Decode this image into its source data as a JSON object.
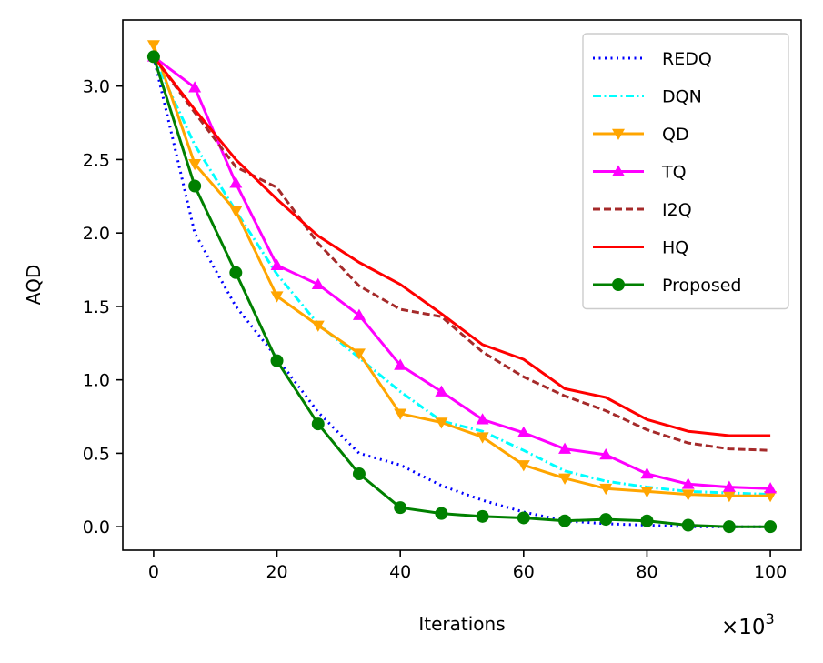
{
  "chart_data": {
    "type": "line",
    "xlabel": "Iterations",
    "ylabel": "AQD",
    "x_multiplier": "×10",
    "x_multiplier_exp": "3",
    "xlim": [
      -5,
      105
    ],
    "ylim": [
      -0.16,
      3.45
    ],
    "xticks": [
      0,
      20,
      40,
      60,
      80,
      100
    ],
    "xtick_labels": [
      "0",
      "20",
      "40",
      "60",
      "80",
      "100"
    ],
    "yticks": [
      0.0,
      0.5,
      1.0,
      1.5,
      2.0,
      2.5,
      3.0
    ],
    "ytick_labels": [
      "0.0",
      "0.5",
      "1.0",
      "1.5",
      "2.0",
      "2.5",
      "3.0"
    ],
    "grid": false,
    "legend_position": "top-right",
    "x": [
      0,
      6.67,
      13.33,
      20,
      26.67,
      33.33,
      40,
      46.67,
      53.33,
      60,
      66.67,
      73.33,
      80,
      86.67,
      93.33,
      100
    ],
    "series": [
      {
        "name": "REDQ",
        "color": "#0000ff",
        "style": "dotted",
        "marker": "none",
        "values": [
          3.2,
          2.0,
          1.5,
          1.15,
          0.78,
          0.5,
          0.42,
          0.28,
          0.18,
          0.1,
          0.04,
          0.02,
          0.01,
          0.0,
          0.0,
          0.0
        ]
      },
      {
        "name": "DQN",
        "color": "#00ffff",
        "style": "dashdot",
        "marker": "none",
        "values": [
          3.2,
          2.6,
          2.15,
          1.72,
          1.38,
          1.15,
          0.92,
          0.72,
          0.65,
          0.52,
          0.38,
          0.31,
          0.27,
          0.24,
          0.23,
          0.22
        ]
      },
      {
        "name": "QD",
        "color": "#ffa500",
        "style": "solid",
        "marker": "triangle-down",
        "values": [
          3.28,
          2.47,
          2.15,
          1.57,
          1.37,
          1.18,
          0.77,
          0.71,
          0.61,
          0.42,
          0.33,
          0.26,
          0.24,
          0.22,
          0.21,
          0.21
        ]
      },
      {
        "name": "TQ",
        "color": "#ff00ff",
        "style": "solid",
        "marker": "triangle-up",
        "values": [
          3.2,
          2.99,
          2.34,
          1.78,
          1.65,
          1.44,
          1.1,
          0.92,
          0.73,
          0.64,
          0.53,
          0.49,
          0.36,
          0.29,
          0.27,
          0.26
        ]
      },
      {
        "name": "I2Q",
        "color": "#a52a2a",
        "style": "dashed",
        "marker": "none",
        "values": [
          3.2,
          2.82,
          2.45,
          2.31,
          1.93,
          1.64,
          1.48,
          1.43,
          1.19,
          1.02,
          0.89,
          0.79,
          0.66,
          0.57,
          0.53,
          0.52
        ]
      },
      {
        "name": "HQ",
        "color": "#ff0000",
        "style": "solid",
        "marker": "none",
        "values": [
          3.2,
          2.84,
          2.5,
          2.23,
          1.98,
          1.8,
          1.65,
          1.45,
          1.24,
          1.14,
          0.94,
          0.88,
          0.73,
          0.65,
          0.62,
          0.62
        ]
      },
      {
        "name": "Proposed",
        "color": "#008000",
        "style": "solid",
        "marker": "circle",
        "values": [
          3.2,
          2.32,
          1.73,
          1.13,
          0.7,
          0.36,
          0.13,
          0.09,
          0.07,
          0.06,
          0.04,
          0.05,
          0.04,
          0.01,
          0.0,
          0.0
        ]
      }
    ]
  }
}
